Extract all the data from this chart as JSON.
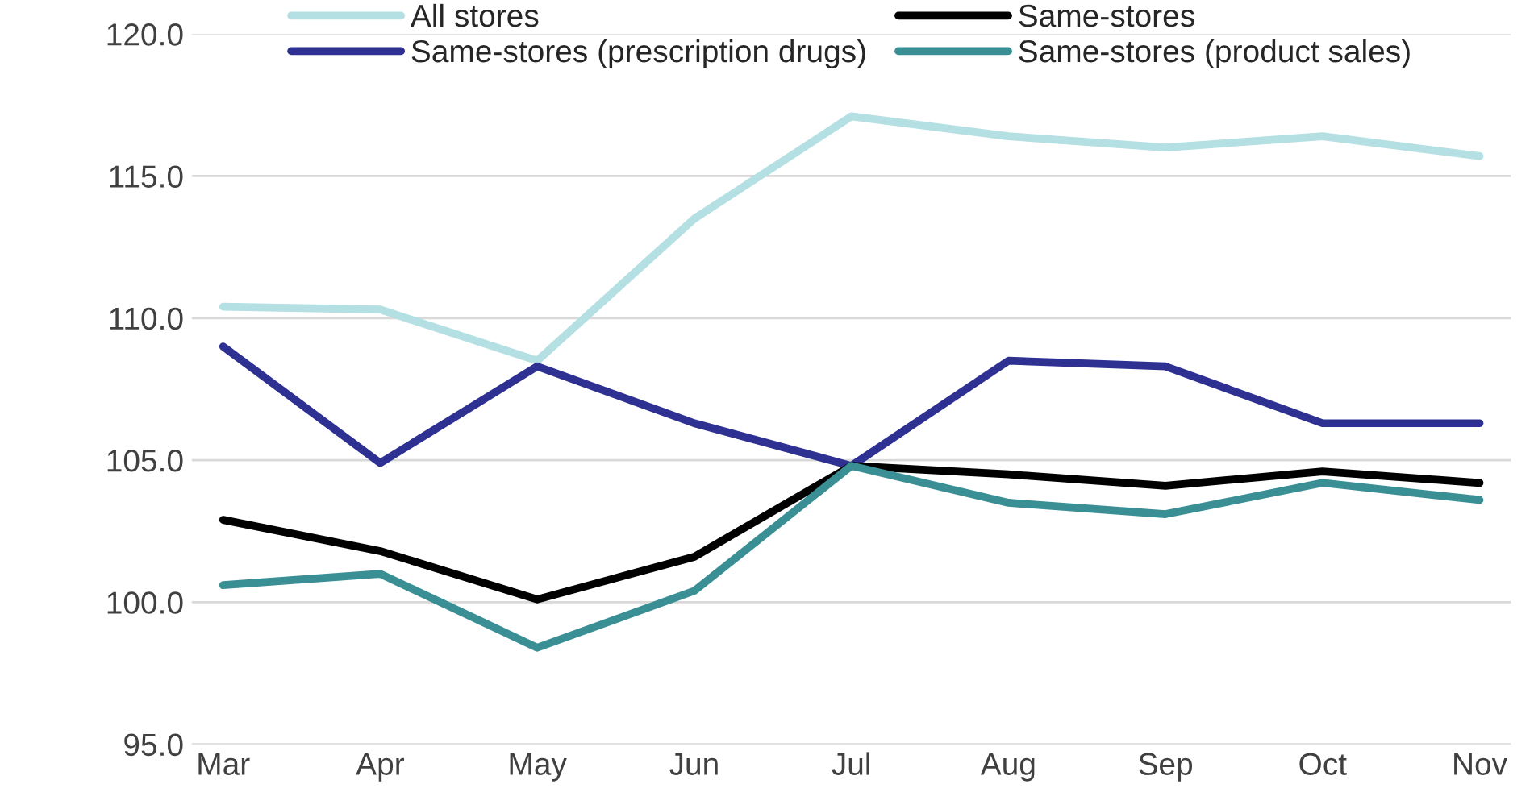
{
  "chart_data": {
    "type": "line",
    "categories": [
      "Mar",
      "Apr",
      "May",
      "Jun",
      "Jul",
      "Aug",
      "Sep",
      "Oct",
      "Nov"
    ],
    "series": [
      {
        "name": "All stores",
        "color": "#b4dfe3",
        "values": [
          110.4,
          110.3,
          108.5,
          113.5,
          117.1,
          116.4,
          116.0,
          116.4,
          115.7
        ]
      },
      {
        "name": "Same-stores (prescription drugs)",
        "color": "#2e3192",
        "values": [
          109.0,
          104.9,
          108.3,
          106.3,
          104.8,
          108.5,
          108.3,
          106.3,
          106.3
        ]
      },
      {
        "name": "Same-stores",
        "color": "#000000",
        "values": [
          102.9,
          101.8,
          100.1,
          101.6,
          104.8,
          104.5,
          104.1,
          104.6,
          104.2
        ]
      },
      {
        "name": "Same-stores (product sales)",
        "color": "#3a8f95",
        "values": [
          100.6,
          101.0,
          98.4,
          100.4,
          104.8,
          103.5,
          103.1,
          104.2,
          103.6
        ]
      }
    ],
    "ylim": [
      95,
      120
    ],
    "yticks": [
      {
        "value": 95,
        "label": "95.0"
      },
      {
        "value": 100,
        "label": "100.0"
      },
      {
        "value": 105,
        "label": "105.0"
      },
      {
        "value": 110,
        "label": "110.0"
      },
      {
        "value": 115,
        "label": "115.0"
      },
      {
        "value": 120,
        "label": "120.0"
      }
    ],
    "grid": "y",
    "legend": "top",
    "marker": "none",
    "line_style": "solid"
  }
}
